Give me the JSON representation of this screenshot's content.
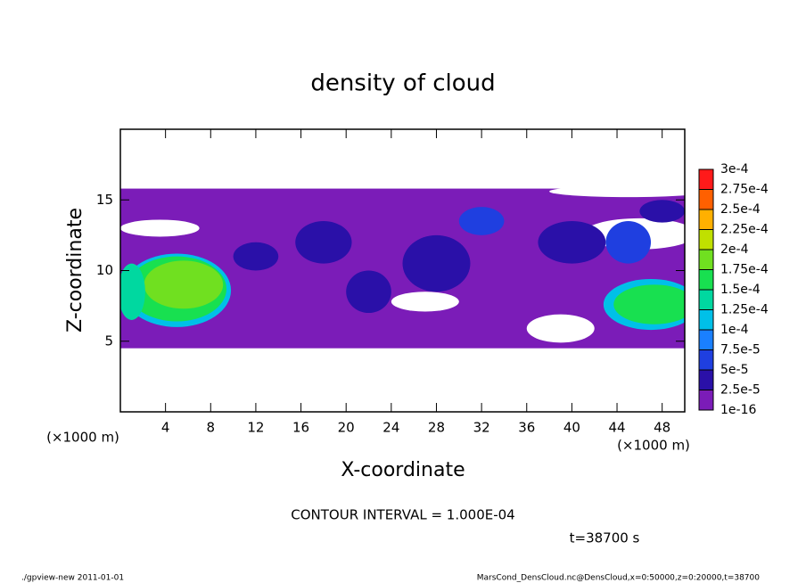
{
  "chart_data": {
    "type": "contour",
    "title": "density of cloud",
    "x_label": "X-coordinate",
    "y_label": "Z-coordinate",
    "x_unit_left": "(×1000 m)",
    "x_unit_right": "(×1000 m)",
    "contour_note": "CONTOUR INTERVAL = 1.000E-04",
    "time_label": "t=38700 s",
    "footer_left": "./gpview-new  2011-01-01",
    "footer_right": "MarsCond_DensCloud.nc@DensCloud,x=0:50000,z=0:20000,t=38700",
    "xlim": [
      0,
      50
    ],
    "ylim": [
      0,
      20
    ],
    "xticks": [
      4,
      8,
      12,
      16,
      20,
      24,
      28,
      32,
      36,
      40,
      44,
      48
    ],
    "yticks": [
      5,
      10,
      15
    ],
    "levels": [
      {
        "value": 1e-16,
        "label": "1e-16"
      },
      {
        "value": 2.5e-05,
        "label": "2.5e-5"
      },
      {
        "value": 5e-05,
        "label": "5e-5"
      },
      {
        "value": 7.5e-05,
        "label": "7.5e-5"
      },
      {
        "value": 0.0001,
        "label": "1e-4"
      },
      {
        "value": 0.000125,
        "label": "1.25e-4"
      },
      {
        "value": 0.00015,
        "label": "1.5e-4"
      },
      {
        "value": 0.000175,
        "label": "1.75e-4"
      },
      {
        "value": 0.0002,
        "label": "2e-4"
      },
      {
        "value": 0.000225,
        "label": "2.25e-4"
      },
      {
        "value": 0.00025,
        "label": "2.5e-4"
      },
      {
        "value": 0.000275,
        "label": "2.75e-4"
      },
      {
        "value": 0.0003,
        "label": "3e-4"
      }
    ],
    "colors": [
      "#7b1cb8",
      "#2a10a8",
      "#1f3fe0",
      "#1a80ff",
      "#00c0e8",
      "#00d8a0",
      "#18e050",
      "#70e020",
      "#c0e000",
      "#ffb000",
      "#ff6000",
      "#ff1a1a"
    ],
    "band": {
      "x": [
        0,
        50
      ],
      "z": [
        4.5,
        15.8
      ],
      "level": 0
    },
    "regions": [
      {
        "x": 3.5,
        "z": 13.0,
        "rx": 3.5,
        "rz": 0.6,
        "level": null
      },
      {
        "x": 46,
        "z": 12.6,
        "rx": 5,
        "rz": 1.1,
        "level": null
      },
      {
        "x": 45,
        "z": 15.6,
        "rx": 7,
        "rz": 0.4,
        "level": null
      },
      {
        "x": 27,
        "z": 7.8,
        "rx": 3,
        "rz": 0.7,
        "level": null
      },
      {
        "x": 39,
        "z": 5.9,
        "rx": 3,
        "rz": 1.0,
        "level": null
      },
      {
        "x": 12,
        "z": 11.0,
        "rx": 2,
        "rz": 1.0,
        "level": 1
      },
      {
        "x": 18,
        "z": 12.0,
        "rx": 2.5,
        "rz": 1.5,
        "level": 1
      },
      {
        "x": 28,
        "z": 10.5,
        "rx": 3,
        "rz": 2,
        "level": 1
      },
      {
        "x": 32,
        "z": 13.5,
        "rx": 2,
        "rz": 1,
        "level": 2
      },
      {
        "x": 40,
        "z": 12.0,
        "rx": 3,
        "rz": 1.5,
        "level": 1
      },
      {
        "x": 45,
        "z": 12.0,
        "rx": 2,
        "rz": 1.5,
        "level": 2
      },
      {
        "x": 48,
        "z": 14.2,
        "rx": 2,
        "rz": 0.8,
        "level": 1
      },
      {
        "x": 22,
        "z": 8.5,
        "rx": 2,
        "rz": 1.5,
        "level": 1
      },
      {
        "x": 5,
        "z": 8.6,
        "rx": 4.8,
        "rz": 2.6,
        "level": 4
      },
      {
        "x": 5,
        "z": 8.7,
        "rx": 4.4,
        "rz": 2.3,
        "level": 6
      },
      {
        "x": 5.6,
        "z": 9.0,
        "rx": 3.5,
        "rz": 1.7,
        "level": 7
      },
      {
        "x": 1,
        "z": 8.5,
        "rx": 1.2,
        "rz": 2,
        "level": 5
      },
      {
        "x": 47,
        "z": 7.6,
        "rx": 4.2,
        "rz": 1.8,
        "level": 4
      },
      {
        "x": 47.3,
        "z": 7.6,
        "rx": 3.6,
        "rz": 1.4,
        "level": 6
      }
    ]
  }
}
